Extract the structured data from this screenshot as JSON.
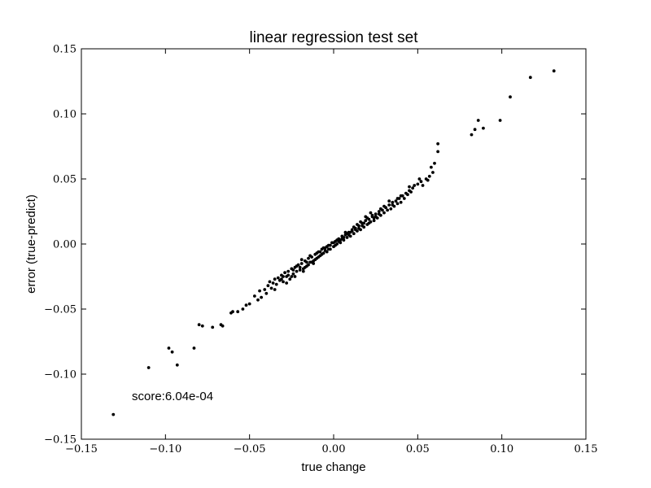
{
  "chart_data": {
    "type": "scatter",
    "title": "linear regression test set",
    "xlabel": "true change",
    "ylabel": "error (true-predict)",
    "xlim": [
      -0.15,
      0.15
    ],
    "ylim": [
      -0.15,
      0.15
    ],
    "xticks": [
      -0.15,
      -0.1,
      -0.05,
      0.0,
      0.05,
      0.1,
      0.15
    ],
    "yticks": [
      -0.15,
      -0.1,
      -0.05,
      0.0,
      0.05,
      0.1,
      0.15
    ],
    "xtick_labels": [
      "−0.15",
      "−0.10",
      "−0.05",
      "0.00",
      "0.05",
      "0.10",
      "0.15"
    ],
    "ytick_labels": [
      "−0.15",
      "−0.10",
      "−0.05",
      "0.00",
      "0.05",
      "0.10",
      "0.15"
    ],
    "grid": false,
    "marker_color": "#000000",
    "annotation": "score:6.04e-04",
    "points": [
      [
        -0.131,
        -0.131
      ],
      [
        -0.11,
        -0.095
      ],
      [
        -0.098,
        -0.08
      ],
      [
        -0.096,
        -0.083
      ],
      [
        -0.093,
        -0.093
      ],
      [
        -0.083,
        -0.08
      ],
      [
        -0.08,
        -0.062
      ],
      [
        -0.078,
        -0.063
      ],
      [
        -0.072,
        -0.064
      ],
      [
        -0.067,
        -0.062
      ],
      [
        -0.066,
        -0.063
      ],
      [
        -0.061,
        -0.053
      ],
      [
        -0.06,
        -0.052
      ],
      [
        -0.057,
        -0.052
      ],
      [
        -0.054,
        -0.05
      ],
      [
        -0.052,
        -0.047
      ],
      [
        -0.05,
        -0.046
      ],
      [
        -0.047,
        -0.04
      ],
      [
        -0.045,
        -0.043
      ],
      [
        -0.044,
        -0.036
      ],
      [
        -0.043,
        -0.041
      ],
      [
        -0.041,
        -0.035
      ],
      [
        -0.04,
        -0.038
      ],
      [
        -0.039,
        -0.032
      ],
      [
        -0.038,
        -0.029
      ],
      [
        -0.037,
        -0.034
      ],
      [
        -0.036,
        -0.03
      ],
      [
        -0.035,
        -0.027
      ],
      [
        -0.034,
        -0.031
      ],
      [
        -0.033,
        -0.026
      ],
      [
        -0.032,
        -0.028
      ],
      [
        -0.031,
        -0.024
      ],
      [
        -0.03,
        -0.029
      ],
      [
        -0.029,
        -0.022
      ],
      [
        -0.028,
        -0.025
      ],
      [
        -0.027,
        -0.021
      ],
      [
        -0.026,
        -0.027
      ],
      [
        -0.025,
        -0.019
      ],
      [
        -0.024,
        -0.023
      ],
      [
        -0.023,
        -0.018
      ],
      [
        -0.022,
        -0.021
      ],
      [
        -0.021,
        -0.016
      ],
      [
        -0.02,
        -0.02
      ],
      [
        -0.019,
        -0.015
      ],
      [
        -0.018,
        -0.019
      ],
      [
        -0.017,
        -0.013
      ],
      [
        -0.016,
        -0.017
      ],
      [
        -0.015,
        -0.011
      ],
      [
        -0.014,
        -0.014
      ],
      [
        -0.013,
        -0.01
      ],
      [
        -0.012,
        -0.013
      ],
      [
        -0.011,
        -0.008
      ],
      [
        -0.01,
        -0.011
      ],
      [
        -0.009,
        -0.006
      ],
      [
        -0.008,
        -0.009
      ],
      [
        -0.007,
        -0.004
      ],
      [
        -0.006,
        -0.007
      ],
      [
        -0.005,
        -0.003
      ],
      [
        -0.004,
        -0.006
      ],
      [
        -0.003,
        -0.001
      ],
      [
        -0.002,
        -0.004
      ],
      [
        -0.001,
        0.001
      ],
      [
        0.0,
        -0.002
      ],
      [
        0.001,
        0.002
      ],
      [
        0.002,
        0.0
      ],
      [
        0.003,
        0.004
      ],
      [
        0.004,
        0.001
      ],
      [
        0.005,
        0.006
      ],
      [
        0.006,
        0.003
      ],
      [
        0.007,
        0.007
      ],
      [
        0.008,
        0.005
      ],
      [
        0.009,
        0.009
      ],
      [
        0.01,
        0.006
      ],
      [
        0.011,
        0.01
      ],
      [
        0.012,
        0.008
      ],
      [
        0.013,
        0.012
      ],
      [
        0.014,
        0.01
      ],
      [
        0.015,
        0.014
      ],
      [
        0.016,
        0.011
      ],
      [
        0.017,
        0.016
      ],
      [
        0.018,
        0.013
      ],
      [
        0.019,
        0.018
      ],
      [
        0.02,
        0.015
      ],
      [
        0.021,
        0.019
      ],
      [
        0.022,
        0.017
      ],
      [
        0.023,
        0.021
      ],
      [
        0.024,
        0.018
      ],
      [
        0.025,
        0.023
      ],
      [
        0.026,
        0.02
      ],
      [
        0.027,
        0.025
      ],
      [
        0.028,
        0.022
      ],
      [
        0.029,
        0.026
      ],
      [
        0.03,
        0.024
      ],
      [
        0.031,
        0.028
      ],
      [
        0.032,
        0.026
      ],
      [
        0.033,
        0.03
      ],
      [
        0.034,
        0.027
      ],
      [
        0.035,
        0.032
      ],
      [
        0.036,
        0.029
      ],
      [
        0.037,
        0.033
      ],
      [
        0.038,
        0.031
      ],
      [
        0.039,
        0.035
      ],
      [
        0.04,
        0.032
      ],
      [
        0.041,
        0.037
      ],
      [
        0.042,
        0.035
      ],
      [
        0.043,
        0.039
      ],
      [
        0.044,
        0.038
      ],
      [
        0.045,
        0.041
      ],
      [
        0.046,
        0.04
      ],
      [
        0.047,
        0.043
      ],
      [
        0.048,
        0.045
      ],
      [
        0.05,
        0.046
      ],
      [
        0.052,
        0.048
      ],
      [
        0.053,
        0.045
      ],
      [
        0.055,
        0.05
      ],
      [
        0.057,
        0.052
      ],
      [
        0.059,
        0.055
      ],
      [
        0.06,
        0.062
      ],
      [
        0.062,
        0.071
      ],
      [
        0.062,
        0.077
      ],
      [
        0.082,
        0.084
      ],
      [
        0.084,
        0.088
      ],
      [
        0.086,
        0.095
      ],
      [
        0.089,
        0.089
      ],
      [
        0.099,
        0.095
      ],
      [
        0.105,
        0.113
      ],
      [
        0.117,
        0.128
      ],
      [
        0.131,
        0.133
      ],
      [
        -0.02,
        -0.018
      ],
      [
        -0.015,
        -0.016
      ],
      [
        -0.01,
        -0.007
      ],
      [
        -0.005,
        -0.005
      ],
      [
        0.0,
        0.001
      ],
      [
        0.005,
        0.004
      ],
      [
        0.01,
        0.009
      ],
      [
        0.015,
        0.012
      ],
      [
        0.02,
        0.02
      ],
      [
        0.025,
        0.021
      ],
      [
        -0.018,
        -0.021
      ],
      [
        -0.012,
        -0.015
      ],
      [
        -0.008,
        -0.006
      ],
      [
        -0.002,
        -0.001
      ],
      [
        0.002,
        0.003
      ],
      [
        0.008,
        0.008
      ],
      [
        0.012,
        0.013
      ],
      [
        0.018,
        0.016
      ],
      [
        0.022,
        0.024
      ],
      [
        0.028,
        0.027
      ],
      [
        -0.025,
        -0.025
      ],
      [
        -0.022,
        -0.017
      ],
      [
        -0.016,
        -0.014
      ],
      [
        -0.011,
        -0.012
      ],
      [
        -0.006,
        -0.003
      ],
      [
        0.001,
        -0.001
      ],
      [
        0.006,
        0.005
      ],
      [
        0.011,
        0.011
      ],
      [
        0.016,
        0.017
      ],
      [
        0.021,
        0.016
      ],
      [
        -0.03,
        -0.025
      ],
      [
        -0.028,
        -0.03
      ],
      [
        -0.024,
        -0.02
      ],
      [
        -0.019,
        -0.012
      ],
      [
        -0.014,
        -0.009
      ],
      [
        -0.009,
        -0.01
      ],
      [
        -0.004,
        -0.002
      ],
      [
        0.003,
        0.002
      ],
      [
        0.009,
        0.007
      ],
      [
        0.014,
        0.015
      ],
      [
        0.019,
        0.021
      ],
      [
        0.024,
        0.02
      ],
      [
        0.03,
        0.029
      ],
      [
        0.035,
        0.03
      ],
      [
        0.04,
        0.037
      ],
      [
        -0.035,
        -0.035
      ],
      [
        -0.031,
        -0.027
      ],
      [
        -0.027,
        -0.024
      ],
      [
        -0.023,
        -0.025
      ],
      [
        -0.017,
        -0.018
      ],
      [
        -0.013,
        -0.014
      ],
      [
        -0.007,
        -0.008
      ],
      [
        -0.003,
        -0.004
      ],
      [
        0.004,
        0.003
      ],
      [
        0.007,
        0.009
      ],
      [
        0.013,
        0.011
      ],
      [
        0.017,
        0.014
      ],
      [
        0.023,
        0.022
      ],
      [
        0.027,
        0.023
      ],
      [
        0.033,
        0.033
      ],
      [
        0.038,
        0.035
      ],
      [
        0.045,
        0.044
      ],
      [
        0.051,
        0.05
      ],
      [
        0.056,
        0.049
      ],
      [
        0.058,
        0.059
      ]
    ]
  }
}
